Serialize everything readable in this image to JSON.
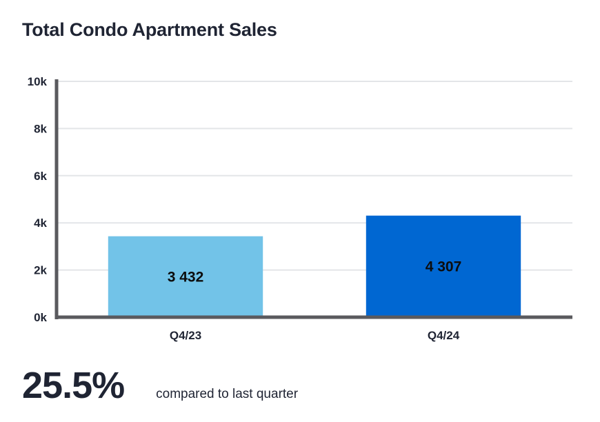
{
  "chart_data": {
    "type": "bar",
    "title": "Total Condo Apartment Sales",
    "categories": [
      "Q4/23",
      "Q4/24"
    ],
    "values": [
      3432,
      4307
    ],
    "value_labels": [
      "3 432",
      "4 307"
    ],
    "bar_colors": [
      "#72c3e8",
      "#0067d2"
    ],
    "ylim": [
      0,
      10000
    ],
    "yticks": [
      0,
      2000,
      4000,
      6000,
      8000,
      10000
    ],
    "ytick_labels": [
      "0k",
      "2k",
      "4k",
      "6k",
      "8k",
      "10k"
    ],
    "xlabel": "",
    "ylabel": "",
    "grid": true
  },
  "summary": {
    "value": "25.5%",
    "caption": "compared to last quarter"
  },
  "colors": {
    "axis": "#5a5a5e",
    "grid": "#e3e5e8",
    "text": "#1f2433"
  }
}
